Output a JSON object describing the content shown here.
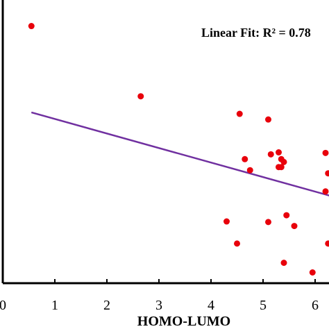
{
  "chart_data": {
    "type": "scatter",
    "title": "",
    "xlabel": "HOMO-LUMO",
    "ylabel": "",
    "xlim": [
      0,
      6.3
    ],
    "ylim": [
      0,
      10
    ],
    "x_ticks": [
      0,
      1,
      2,
      3,
      4,
      5,
      6
    ],
    "x_tick_labels": [
      "0",
      "1",
      "2",
      "3",
      "4",
      "5",
      "6"
    ],
    "grid": false,
    "colors": {
      "points": "#e8000b",
      "fit_line": "#7030a0",
      "axis": "#000000"
    },
    "annotation": "Linear Fit: R² = 0.78",
    "fit_line": {
      "x": [
        0.55,
        6.3
      ],
      "y": [
        6.03,
        3.08
      ]
    },
    "series": [
      {
        "x": [
          0.55,
          2.65,
          4.55,
          5.1,
          5.15,
          5.3,
          5.35,
          5.4,
          5.3,
          5.35,
          4.65,
          4.75,
          6.2,
          6.25,
          6.2,
          4.3,
          5.1,
          5.45,
          5.6,
          4.5,
          6.25,
          5.4,
          5.95
        ],
        "y": [
          9.08,
          6.6,
          5.98,
          5.78,
          4.55,
          4.62,
          4.38,
          4.28,
          4.1,
          4.1,
          4.38,
          3.99,
          4.6,
          3.88,
          3.24,
          2.18,
          2.16,
          2.4,
          2.02,
          1.4,
          1.4,
          0.72,
          0.38
        ]
      }
    ]
  }
}
